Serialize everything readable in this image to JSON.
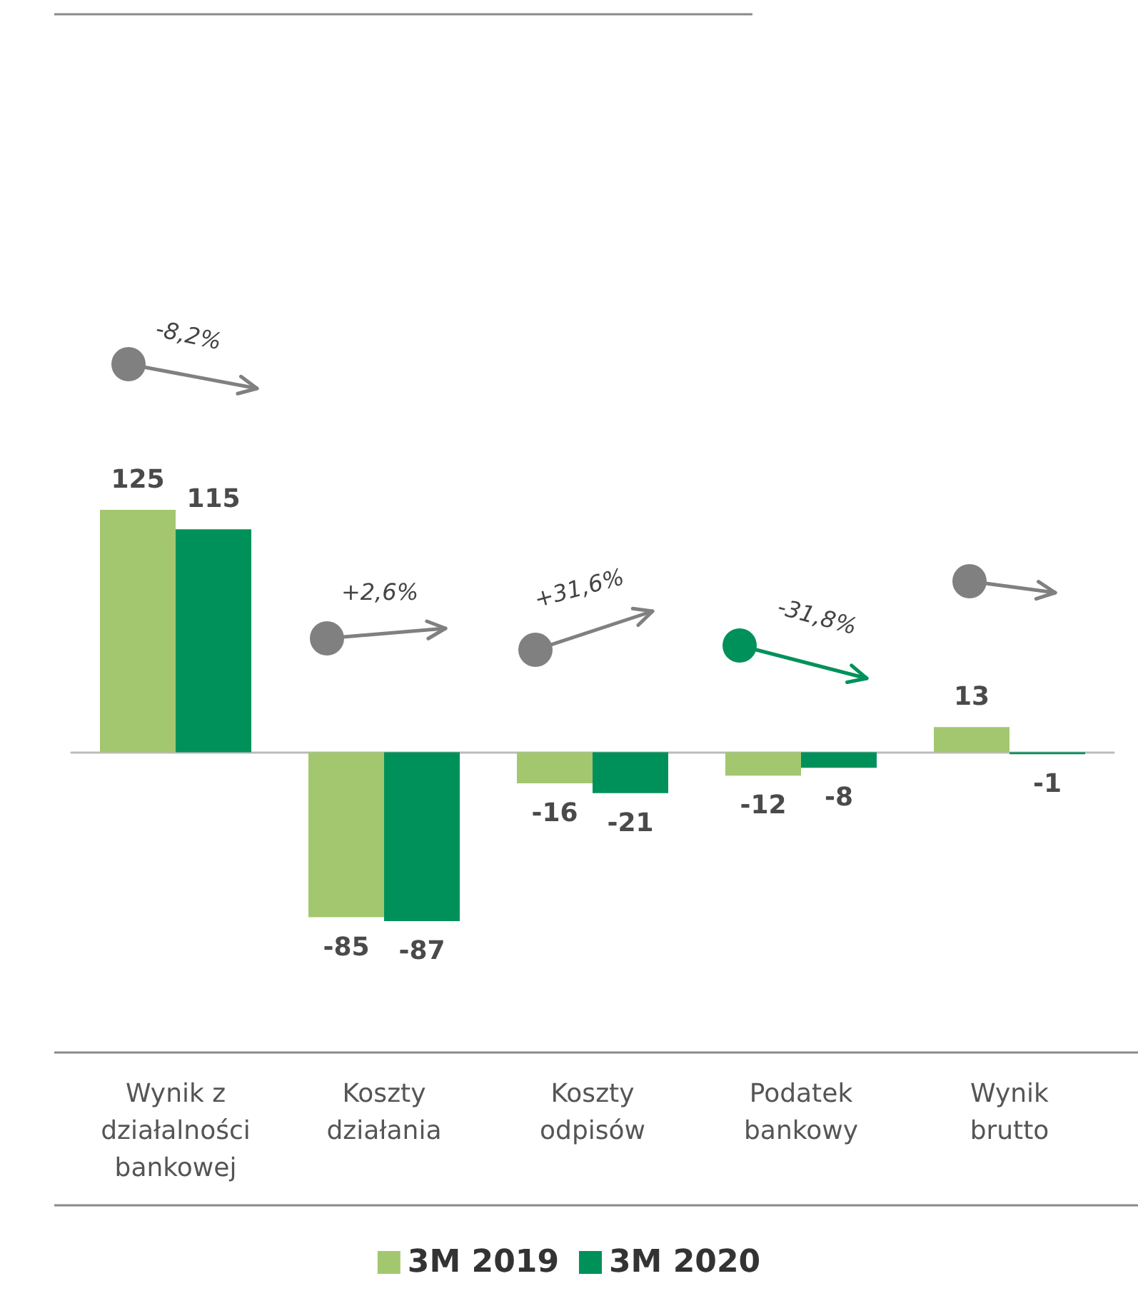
{
  "chart_data": {
    "type": "bar",
    "categories": [
      "Wynik z\ndziałalności\nbankowej",
      "Koszty\ndziałania",
      "Koszty\nodpisów",
      "Podatek\nbankowy",
      "Wynik\nbrutto"
    ],
    "series": [
      {
        "name": "3M 2019",
        "color": "#a3c76f",
        "values": [
          125,
          -85,
          -16,
          -12,
          13
        ]
      },
      {
        "name": "3M 2020",
        "color": "#00915a",
        "values": [
          115,
          -87,
          -21,
          -8,
          -1
        ]
      }
    ],
    "annotations": [
      "-8,2%",
      "+2,6%",
      "+31,6%",
      "-31,8%"
    ],
    "data_labels": true,
    "legend": "bottom"
  }
}
